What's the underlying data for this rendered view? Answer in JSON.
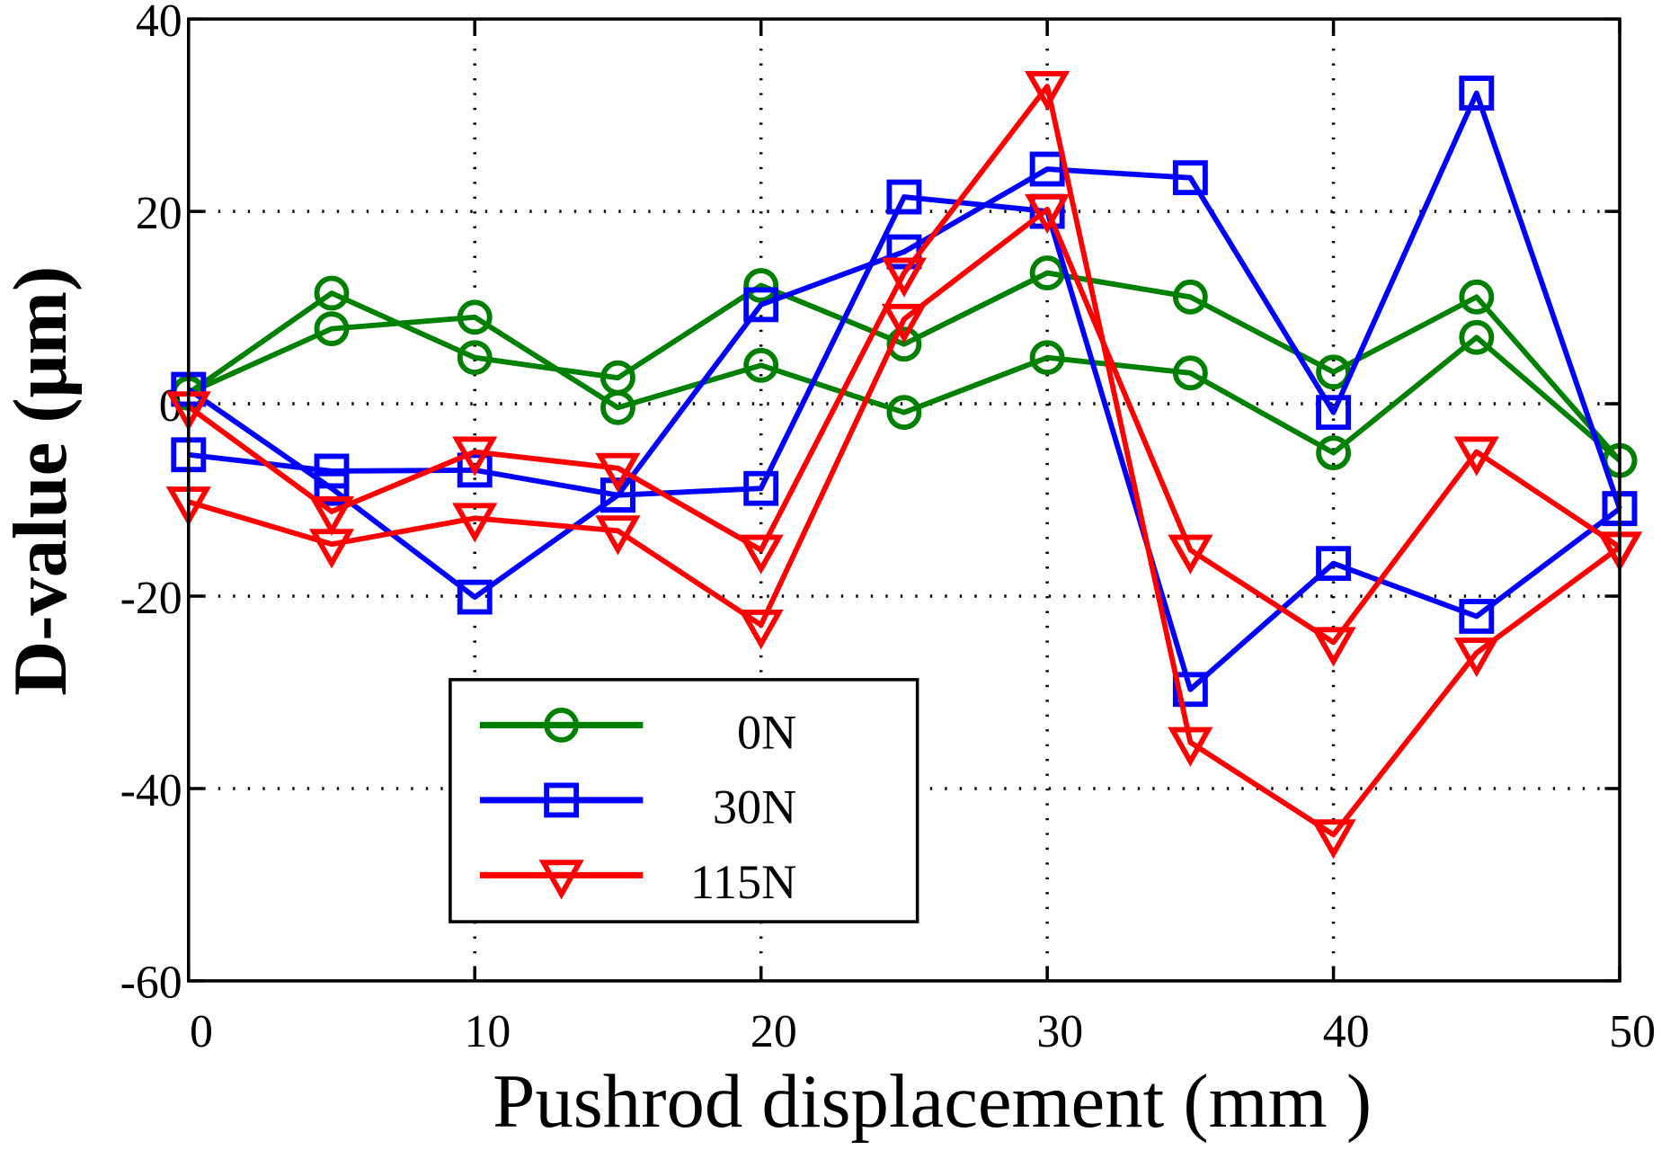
{
  "chart_data": {
    "type": "line",
    "title": "",
    "xlabel": "Pushrod displacement  (mm )",
    "ylabel": "D-value (μm)",
    "xlim": [
      0,
      50
    ],
    "ylim": [
      -60,
      40
    ],
    "xticks": [
      "0",
      "10",
      "20",
      "30",
      "40",
      "50"
    ],
    "yticks": [
      "40",
      "20",
      "0",
      "-20",
      "-40",
      "-60"
    ],
    "grid": true,
    "legend_position": "lower-center",
    "x": [
      0,
      5,
      10,
      15,
      20,
      25,
      30,
      35,
      40,
      45,
      50
    ],
    "series": [
      {
        "name": "0N",
        "color": "#008000",
        "marker": "circle",
        "runs": [
          [
            1.1,
            11.5,
            4.8,
            2.7,
            12.3,
            6.2,
            13.6,
            11.1,
            3.3,
            11.1,
            -5.9
          ],
          [
            1.1,
            7.8,
            9.0,
            -0.4,
            4.0,
            -0.9,
            4.8,
            3.2,
            -5.1,
            6.9,
            -5.9
          ]
        ]
      },
      {
        "name": "30N",
        "color": "#0000ff",
        "marker": "square",
        "runs": [
          [
            1.5,
            -8.8,
            -20.1,
            -9.5,
            10.3,
            15.8,
            24.4,
            23.5,
            -0.9,
            32.3,
            -10.9
          ],
          [
            -5.3,
            -7.0,
            -6.9,
            -9.5,
            -8.8,
            21.5,
            20.0,
            -29.7,
            -16.6,
            -22.1,
            -10.9
          ]
        ]
      },
      {
        "name": "115N",
        "color": "#ff0000",
        "marker": "triangle-down",
        "runs": [
          [
            -0.3,
            -11.2,
            -5.0,
            -6.7,
            -15.2,
            13.6,
            33.0,
            -35.2,
            -44.8,
            -25.9,
            -14.9
          ],
          [
            -10.2,
            -14.6,
            -11.9,
            -13.2,
            -23.0,
            8.8,
            20.2,
            -15.2,
            -24.8,
            -5.0,
            -14.9
          ]
        ]
      }
    ]
  }
}
